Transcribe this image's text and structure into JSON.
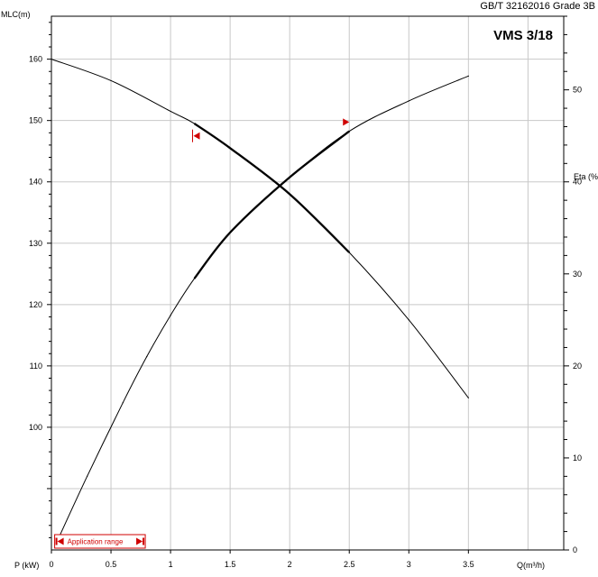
{
  "header": {
    "standard": "GB/T 32162016 Grade 3B",
    "model": "VMS 3/18"
  },
  "chart_data": {
    "type": "line",
    "title": "VMS 3/18",
    "xlabel": "Q(m³/h)",
    "ylabel_left": "MLC(m)",
    "ylabel_right": "Eta (%)",
    "power_label": "P (kW)",
    "xlim": [
      0,
      4.3
    ],
    "ylim_left": [
      80,
      167
    ],
    "ylim_right": [
      0,
      58
    ],
    "x_ticks": [
      "0",
      "0.5",
      "1",
      "1.5",
      "2",
      "2.5",
      "3",
      "3.5"
    ],
    "y_left_ticks": [
      "100",
      "110",
      "120",
      "130",
      "140",
      "150",
      "160"
    ],
    "y_right_ticks": [
      "0",
      "10",
      "20",
      "30",
      "40",
      "50"
    ],
    "grid": true,
    "series": [
      {
        "axis": "left",
        "x": [
          0,
          0.5,
          1.0,
          1.2,
          1.5,
          2.0,
          2.5,
          3.0,
          3.5
        ],
        "y": [
          160,
          156.5,
          151.5,
          149.5,
          145.5,
          138,
          128.5,
          117.5,
          104.8
        ],
        "bold_range": [
          1.2,
          2.5
        ]
      },
      {
        "axis": "right",
        "x": [
          0.05,
          0.3,
          0.6,
          0.8,
          1.0,
          1.2,
          1.5,
          2.0,
          2.5,
          3.0,
          3.5
        ],
        "y": [
          1,
          8,
          16,
          21,
          25.5,
          29.5,
          34.5,
          40.5,
          45.5,
          48.8,
          51.5
        ],
        "bold_range": [
          1.2,
          2.5
        ]
      }
    ],
    "markers": [
      {
        "axis": "left",
        "x": 1.2,
        "y": 147.5
      },
      {
        "axis": "right",
        "x": 2.5,
        "y": 46.5
      }
    ],
    "application_range": {
      "label": "Application range",
      "x": [
        0.05,
        0.75
      ]
    }
  }
}
